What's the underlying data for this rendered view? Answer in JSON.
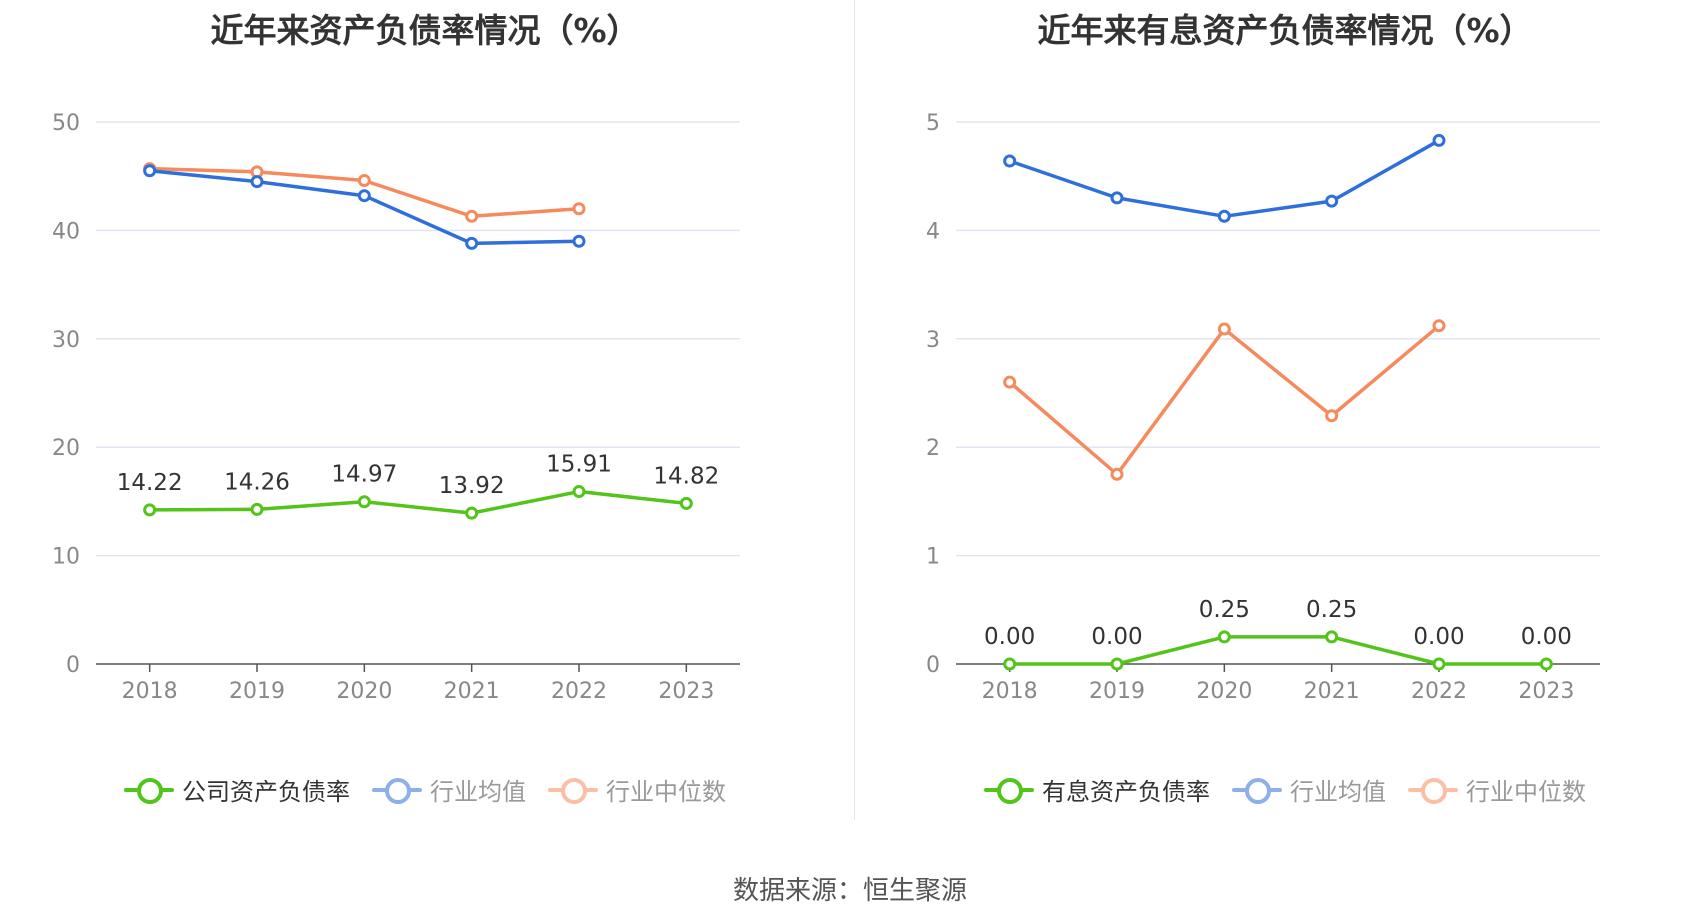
{
  "source": "数据来源：恒生聚源",
  "colors": {
    "company": "#52c41a",
    "avg": "#2f6fdb",
    "median": "#f58a5c",
    "grid": "#dfe6f2",
    "axis": "#888888"
  },
  "chart_data": [
    {
      "type": "line",
      "title": "近年来资产负债率情况（%）",
      "categories": [
        "2018",
        "2019",
        "2020",
        "2021",
        "2022",
        "2023"
      ],
      "ylim": [
        0,
        50
      ],
      "yticks": [
        0,
        10,
        20,
        30,
        40,
        50
      ],
      "grid": true,
      "legend_position": "bottom",
      "series": [
        {
          "name": "公司资产负债率",
          "values": [
            14.22,
            14.26,
            14.97,
            13.92,
            15.91,
            14.82
          ],
          "labels": [
            "14.22",
            "14.26",
            "14.97",
            "13.92",
            "15.91",
            "14.82"
          ],
          "color_key": "company"
        },
        {
          "name": "行业均值",
          "values": [
            45.5,
            44.5,
            43.2,
            38.8,
            39.0,
            null
          ],
          "color_key": "avg"
        },
        {
          "name": "行业中位数",
          "values": [
            45.7,
            45.4,
            44.6,
            41.3,
            42.0,
            null
          ],
          "color_key": "median"
        }
      ]
    },
    {
      "type": "line",
      "title": "近年来有息资产负债率情况（%）",
      "categories": [
        "2018",
        "2019",
        "2020",
        "2021",
        "2022",
        "2023"
      ],
      "ylim": [
        0,
        5
      ],
      "yticks": [
        0,
        1,
        2,
        3,
        4,
        5
      ],
      "grid": true,
      "legend_position": "bottom",
      "series": [
        {
          "name": "有息资产负债率",
          "values": [
            0.0,
            0.0,
            0.25,
            0.25,
            0.0,
            0.0
          ],
          "labels": [
            "0.00",
            "0.00",
            "0.25",
            "0.25",
            "0.00",
            "0.00"
          ],
          "color_key": "company"
        },
        {
          "name": "行业均值",
          "values": [
            4.64,
            4.3,
            4.13,
            4.27,
            4.83,
            null
          ],
          "color_key": "avg"
        },
        {
          "name": "行业中位数",
          "values": [
            2.6,
            1.75,
            3.09,
            2.29,
            3.12,
            null
          ],
          "color_key": "median"
        }
      ]
    }
  ]
}
